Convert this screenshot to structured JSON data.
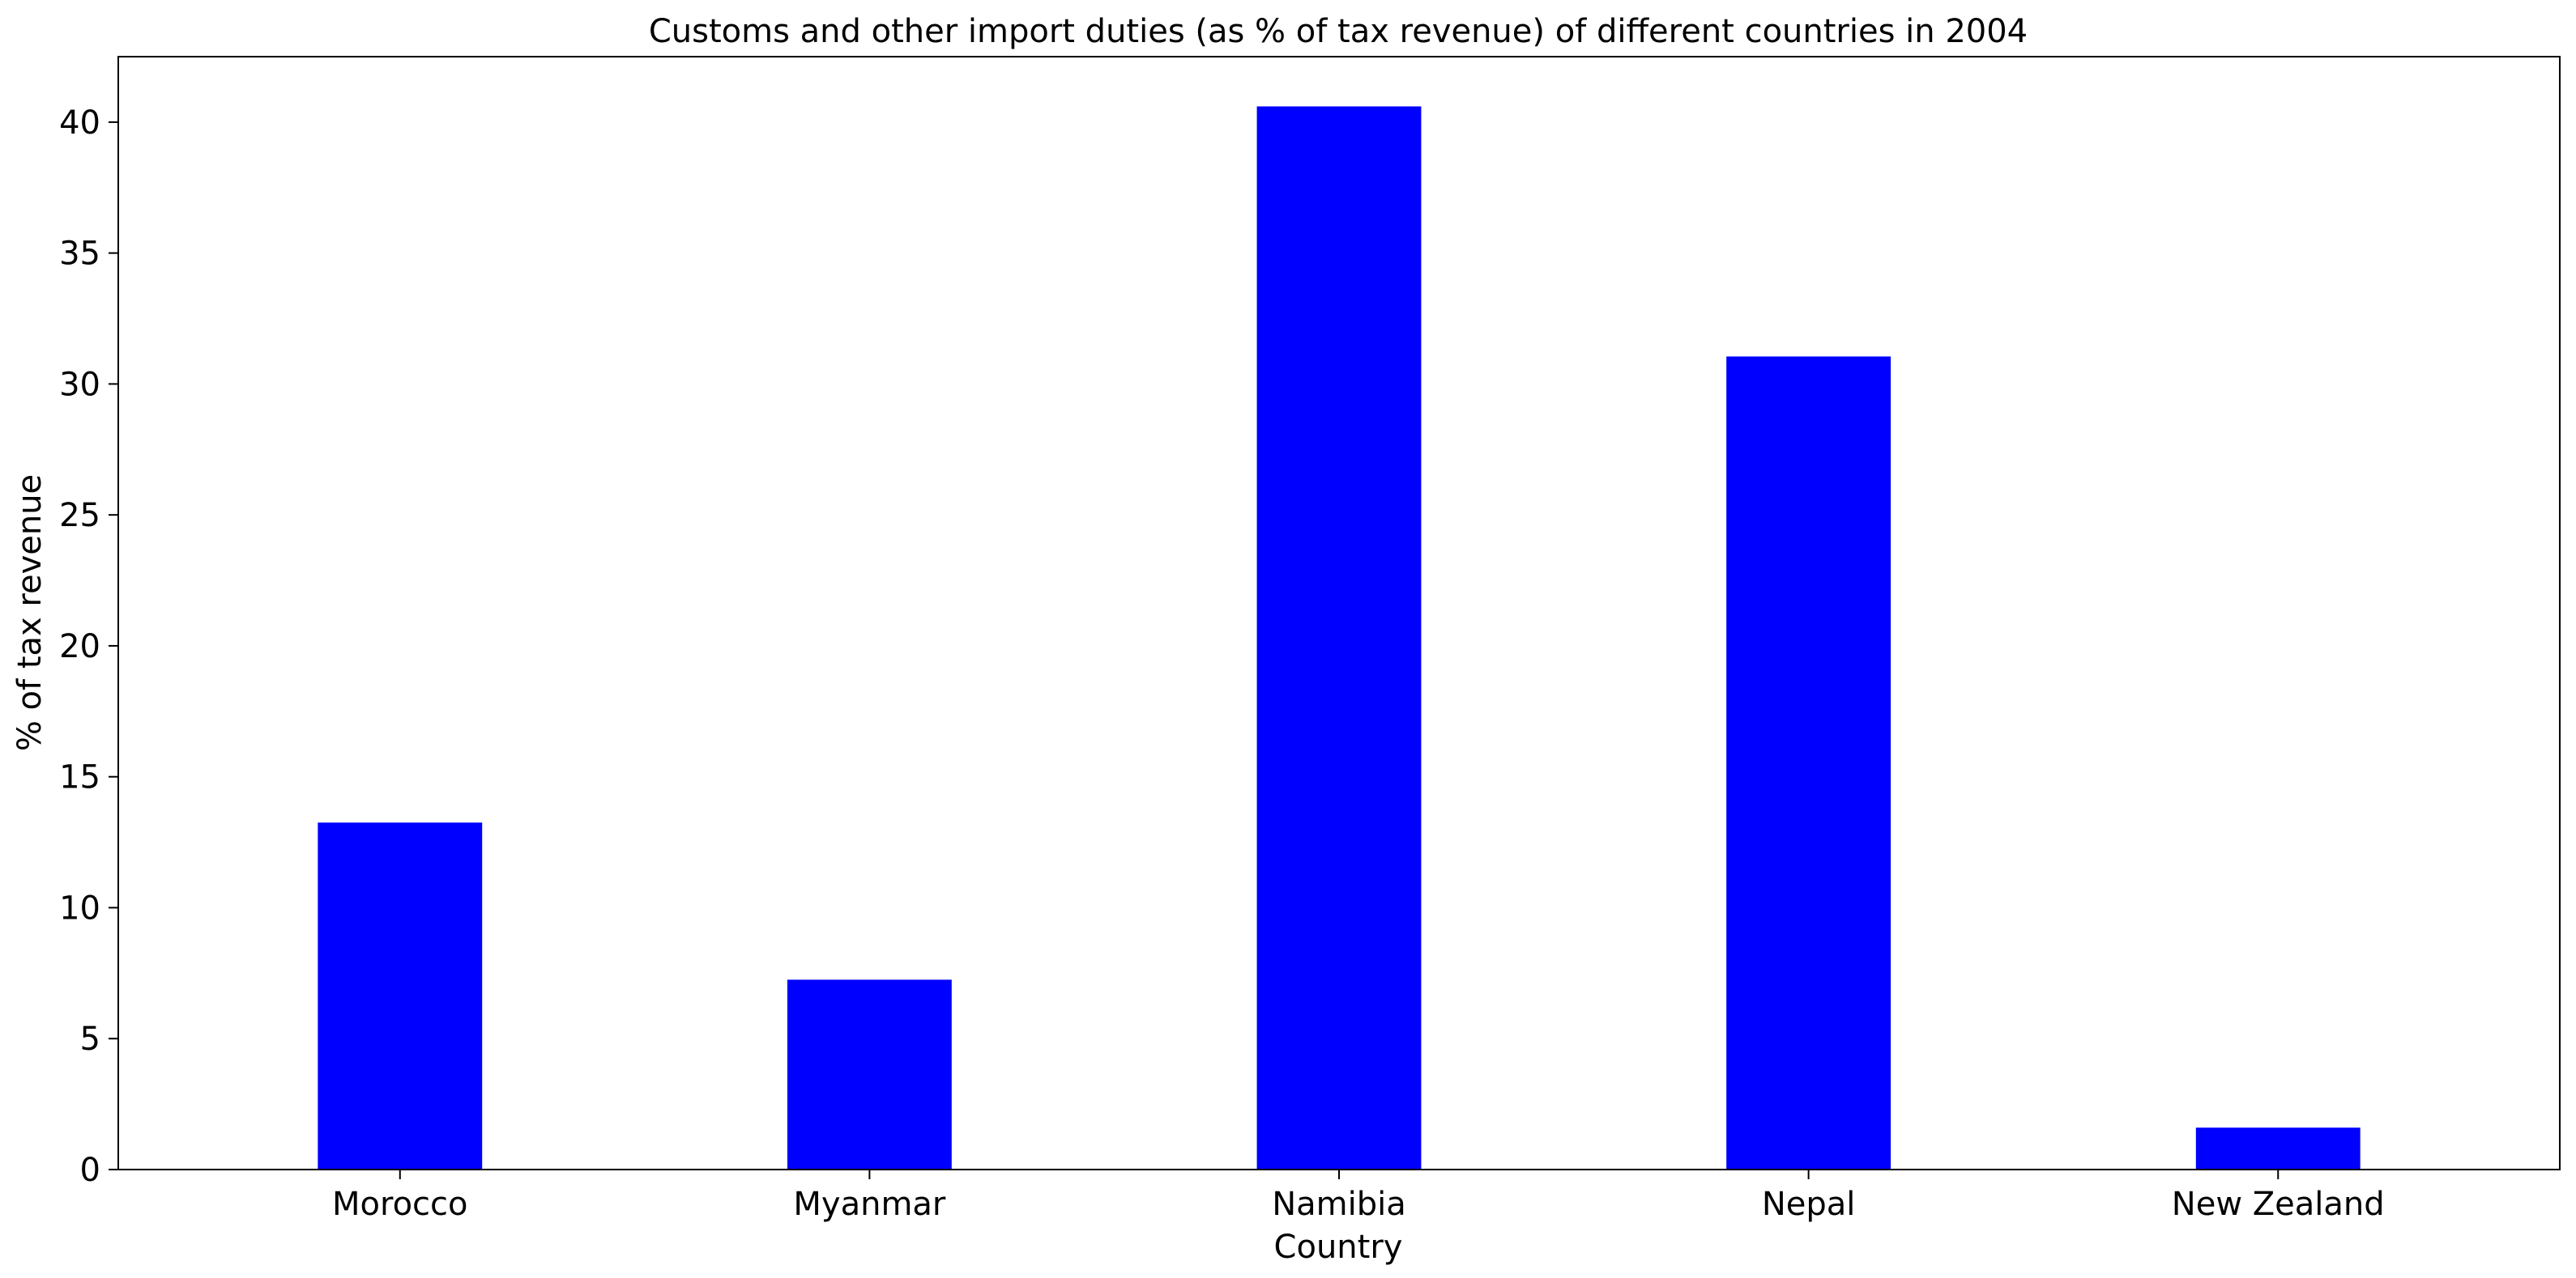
{
  "chart_data": {
    "type": "bar",
    "title": "Customs and other import duties (as % of tax revenue) of different countries in 2004",
    "xlabel": "Country",
    "ylabel": "% of tax revenue",
    "categories": [
      "Morocco",
      "Myanmar",
      "Namibia",
      "Nepal",
      "New Zealand"
    ],
    "values": [
      13.25,
      7.25,
      40.6,
      31.05,
      1.6
    ],
    "ylim": [
      0,
      42.5
    ],
    "yticks": [
      0,
      5,
      10,
      15,
      20,
      25,
      30,
      35,
      40
    ],
    "ytick_labels": [
      "0",
      "5",
      "10",
      "15",
      "20",
      "25",
      "30",
      "35",
      "40"
    ],
    "bar_color": "#0000ff",
    "grid": false,
    "legend": "none"
  }
}
